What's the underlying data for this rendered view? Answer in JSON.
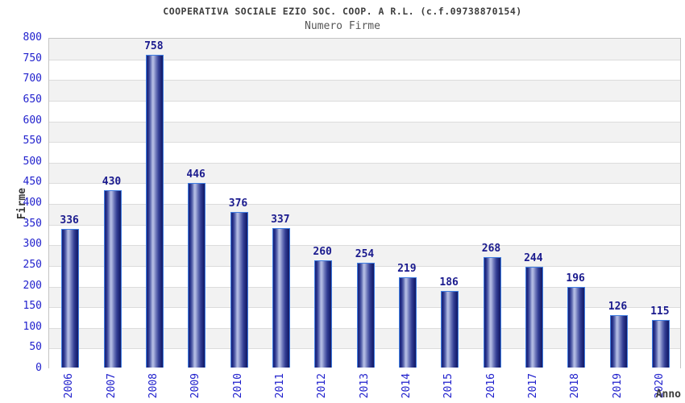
{
  "chart_data": {
    "type": "bar",
    "title": "COOPERATIVA SOCIALE EZIO SOC. COOP. A R.L. (c.f.09738870154)",
    "subtitle": "Numero Firme",
    "xlabel": "Anno",
    "ylabel": "Firme",
    "categories": [
      "2006",
      "2007",
      "2008",
      "2009",
      "2010",
      "2011",
      "2012",
      "2013",
      "2014",
      "2015",
      "2016",
      "2017",
      "2018",
      "2019",
      "2020"
    ],
    "values": [
      336,
      430,
      758,
      446,
      376,
      337,
      260,
      254,
      219,
      186,
      268,
      244,
      196,
      126,
      115
    ],
    "ylim": [
      0,
      800
    ],
    "ytick_step": 50,
    "legend": "none",
    "grid": "horizontal-bands-alternating",
    "colors": {
      "bar_dark": "#141b66",
      "bar_highlight": "#b3bce3",
      "bar_border": "#3f7de2",
      "tick_label": "#2121cd",
      "value_label": "#1b1b8e",
      "title_text": "#3d3d3d",
      "subtitle_text": "#565656",
      "band_gray": "#f2f2f2",
      "band_white": "#ffffff",
      "gridline": "#dcdcdc",
      "plot_border": "#c4c4c4"
    }
  }
}
